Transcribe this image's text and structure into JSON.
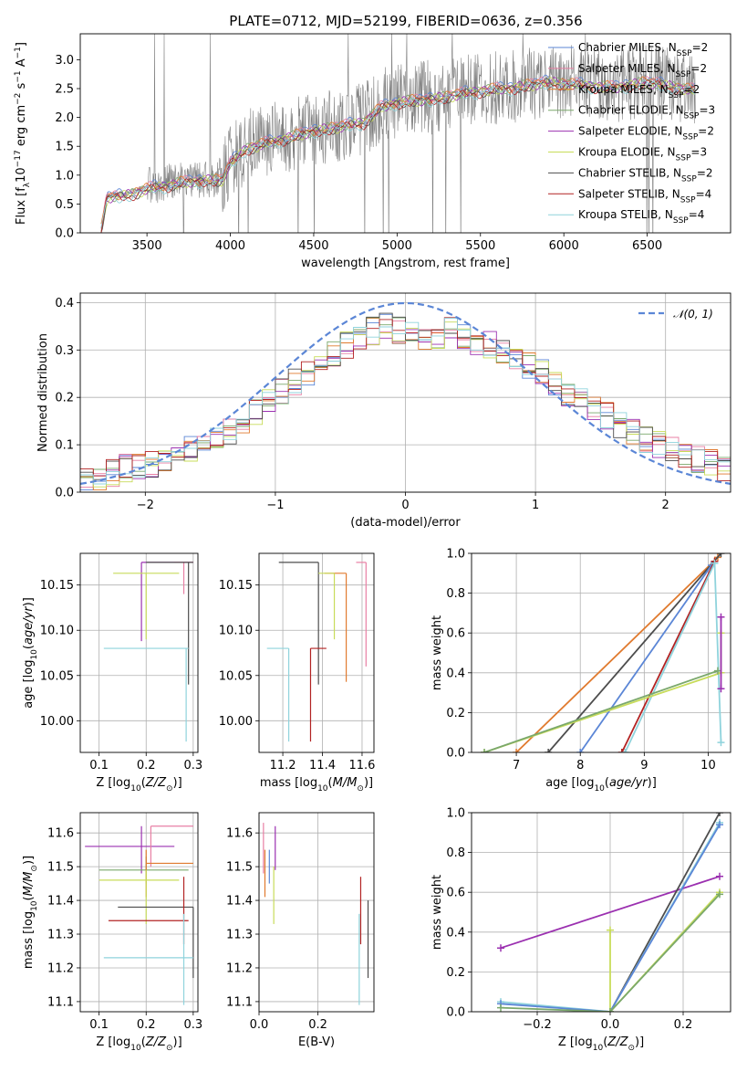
{
  "figure_title": "PLATE=0712, MJD=52199, FIBERID=0636, z=0.356",
  "colors": {
    "chabrier_miles": "#5b86d6",
    "salpeter_miles": "#e87fa4",
    "kroupa_miles": "#e07a2e",
    "chabrier_elodie": "#7aa86b",
    "salpeter_elodie": "#9b30b0",
    "kroupa_elodie": "#c8dc5a",
    "chabrier_stelib": "#4d4d4d",
    "salpeter_stelib": "#b22222",
    "kroupa_stelib": "#8fd3dc",
    "data": "#808080",
    "gaussian": "#5b86d6",
    "grid": "#b0b0b0"
  },
  "chart_data": [
    {
      "id": "spectrum",
      "type": "line",
      "title": "PLATE=0712, MJD=52199, FIBERID=0636, z=0.356",
      "xlabel": "wavelength [Angstrom, rest frame]",
      "ylabel": "Flux [f_λ 10^-17 erg cm^-2 s^-1 A^-1]",
      "xlim": [
        3100,
        7000
      ],
      "ylim": [
        0,
        3.45
      ],
      "xticks": [
        3500,
        4000,
        4500,
        5000,
        5500,
        6000,
        6500
      ],
      "yticks": [
        0.0,
        0.5,
        1.0,
        1.5,
        2.0,
        2.5,
        3.0
      ],
      "grid": false,
      "legend_position": "top-right",
      "series": [
        {
          "name": "Chabrier MILES, N_SSP=2",
          "color_key": "chabrier_miles"
        },
        {
          "name": "Salpeter MILES, N_SSP=2",
          "color_key": "salpeter_miles"
        },
        {
          "name": "Kroupa MILES, N_SSP=2",
          "color_key": "kroupa_miles"
        },
        {
          "name": "Chabrier ELODIE, N_SSP=3",
          "color_key": "chabrier_elodie"
        },
        {
          "name": "Salpeter ELODIE, N_SSP=2",
          "color_key": "salpeter_elodie"
        },
        {
          "name": "Kroupa ELODIE, N_SSP=3",
          "color_key": "kroupa_elodie"
        },
        {
          "name": "Chabrier STELIB, N_SSP=2",
          "color_key": "chabrier_stelib"
        },
        {
          "name": "Salpeter STELIB, N_SSP=4",
          "color_key": "salpeter_stelib"
        },
        {
          "name": "Kroupa STELIB, N_SSP=4",
          "color_key": "kroupa_stelib"
        }
      ],
      "legend_labels": [
        {
          "pre": "Chabrier MILES, N",
          "sub": "SSP",
          "post": "=2"
        },
        {
          "pre": "Salpeter MILES, N",
          "sub": "SSP",
          "post": "=2"
        },
        {
          "pre": "Kroupa MILES, N",
          "sub": "SSP",
          "post": "=2"
        },
        {
          "pre": "Chabrier ELODIE, N",
          "sub": "SSP",
          "post": "=3"
        },
        {
          "pre": "Salpeter ELODIE, N",
          "sub": "SSP",
          "post": "=2"
        },
        {
          "pre": "Kroupa ELODIE, N",
          "sub": "SSP",
          "post": "=3"
        },
        {
          "pre": "Chabrier STELIB, N",
          "sub": "SSP",
          "post": "=2"
        },
        {
          "pre": "Salpeter STELIB, N",
          "sub": "SSP",
          "post": "=4"
        },
        {
          "pre": "Kroupa STELIB, N",
          "sub": "SSP",
          "post": "=4"
        }
      ],
      "model_continuum": {
        "wavelength": [
          3220,
          3260,
          3400,
          3500,
          3700,
          3850,
          3950,
          4000,
          4100,
          4300,
          4500,
          4700,
          4800,
          4900,
          5000,
          5200,
          5400,
          5500,
          5700,
          5900,
          6100,
          6300,
          6500,
          6600,
          6790
        ],
        "flux": [
          0.0,
          0.65,
          0.7,
          0.8,
          0.9,
          0.95,
          0.95,
          1.25,
          1.5,
          1.65,
          1.8,
          1.9,
          1.95,
          2.2,
          2.3,
          2.35,
          2.45,
          2.5,
          2.55,
          2.65,
          2.6,
          2.55,
          2.65,
          2.6,
          2.5
        ]
      }
    },
    {
      "id": "residuals",
      "type": "step",
      "xlabel": "(data-model)/error",
      "ylabel": "Normed distribution",
      "xlim": [
        -2.5,
        2.5
      ],
      "ylim": [
        0,
        0.42
      ],
      "xticks": [
        -2,
        -1,
        0,
        1,
        2
      ],
      "yticks": [
        0.0,
        0.1,
        0.2,
        0.3,
        0.4
      ],
      "grid": true,
      "legend_position": "top-right",
      "legend_label": "𝒩(0, 1)",
      "gaussian": {
        "mean": 0,
        "sigma": 1,
        "style": "dashed"
      },
      "histogram_bins": {
        "start": -2.5,
        "width": 0.1
      },
      "histogram_shape": [
        0.03,
        0.03,
        0.04,
        0.05,
        0.055,
        0.06,
        0.07,
        0.08,
        0.09,
        0.1,
        0.12,
        0.13,
        0.15,
        0.17,
        0.19,
        0.21,
        0.23,
        0.25,
        0.27,
        0.29,
        0.31,
        0.33,
        0.34,
        0.35,
        0.34,
        0.33,
        0.32,
        0.33,
        0.34,
        0.33,
        0.32,
        0.31,
        0.3,
        0.28,
        0.27,
        0.25,
        0.23,
        0.21,
        0.2,
        0.18,
        0.16,
        0.14,
        0.13,
        0.11,
        0.1,
        0.09,
        0.08,
        0.07,
        0.06,
        0.05
      ]
    },
    {
      "id": "age_vs_Z",
      "type": "errorbar",
      "xlabel": "Z [log10(Z/Z⊙)]",
      "ylabel": "age [log10(age/yr)]",
      "xlim": [
        0.06,
        0.31
      ],
      "ylim": [
        9.965,
        10.185
      ],
      "xticks": [
        0.1,
        0.2,
        0.3
      ],
      "yticks": [
        10.0,
        10.05,
        10.1,
        10.15
      ],
      "grid": true,
      "points": [
        {
          "color_key": "salpeter_elodie",
          "x": 0.19,
          "y": 10.175,
          "xerr_lo": 0.19,
          "xerr_hi": 0.3,
          "yerr_lo": 10.088,
          "yerr_hi": 10.175
        },
        {
          "color_key": "salpeter_miles",
          "x": 0.28,
          "y": 10.175,
          "xerr_lo": 0.26,
          "xerr_hi": 0.3,
          "yerr_lo": 10.14,
          "yerr_hi": 10.175
        },
        {
          "color_key": "kroupa_elodie",
          "x": 0.2,
          "y": 10.163,
          "xerr_lo": 0.13,
          "xerr_hi": 0.27,
          "yerr_lo": 10.09,
          "yerr_hi": 10.163
        },
        {
          "color_key": "chabrier_stelib",
          "x": 0.29,
          "y": 10.175,
          "xerr_lo": 0.2,
          "xerr_hi": 0.3,
          "yerr_lo": 10.04,
          "yerr_hi": 10.175
        },
        {
          "color_key": "kroupa_stelib",
          "x": 0.285,
          "y": 10.08,
          "xerr_lo": 0.11,
          "xerr_hi": 0.29,
          "yerr_lo": 9.977,
          "yerr_hi": 10.08
        }
      ]
    },
    {
      "id": "age_vs_mass",
      "type": "errorbar",
      "xlabel": "mass [log10(M/M⊙)]",
      "ylabel": "",
      "xlim": [
        11.08,
        11.66
      ],
      "ylim": [
        9.965,
        10.185
      ],
      "xticks": [
        11.2,
        11.4,
        11.6
      ],
      "yticks": [
        10.0,
        10.05,
        10.1,
        10.15
      ],
      "grid": true,
      "points": [
        {
          "color_key": "chabrier_stelib",
          "x": 11.38,
          "y": 10.175,
          "xerr_lo": 11.18,
          "xerr_hi": 11.38,
          "yerr_lo": 10.04,
          "yerr_hi": 10.175
        },
        {
          "color_key": "salpeter_miles",
          "x": 11.62,
          "y": 10.175,
          "xerr_lo": 11.57,
          "xerr_hi": 11.62,
          "yerr_lo": 10.06,
          "yerr_hi": 10.175
        },
        {
          "color_key": "salpeter_stelib",
          "x": 11.34,
          "y": 10.08,
          "xerr_lo": 11.34,
          "xerr_hi": 11.42,
          "yerr_lo": 9.977,
          "yerr_hi": 10.08
        },
        {
          "color_key": "kroupa_miles",
          "x": 11.52,
          "y": 10.163,
          "xerr_lo": 11.41,
          "xerr_hi": 11.52,
          "yerr_lo": 10.043,
          "yerr_hi": 10.163
        },
        {
          "color_key": "kroupa_stelib",
          "x": 11.23,
          "y": 10.08,
          "xerr_lo": 11.12,
          "xerr_hi": 11.23,
          "yerr_lo": 9.977,
          "yerr_hi": 10.08
        },
        {
          "color_key": "kroupa_elodie",
          "x": 11.46,
          "y": 10.163,
          "xerr_lo": 11.38,
          "xerr_hi": 11.46,
          "yerr_lo": 10.09,
          "yerr_hi": 10.163
        }
      ]
    },
    {
      "id": "massweight_vs_age",
      "type": "line",
      "xlabel": "age [log10(age/yr)]",
      "ylabel": "mass weight",
      "xlim": [
        6.3,
        10.35
      ],
      "ylim": [
        0,
        1.0
      ],
      "xticks": [
        7,
        8,
        9,
        10
      ],
      "yticks": [
        0.0,
        0.2,
        0.4,
        0.6,
        0.8,
        1.0
      ],
      "grid": true,
      "series": [
        {
          "color_key": "kroupa_miles",
          "x": [
            7.0,
            10.15
          ],
          "y": [
            0.0,
            0.98
          ]
        },
        {
          "color_key": "chabrier_stelib",
          "x": [
            7.5,
            10.2
          ],
          "y": [
            0.0,
            1.0
          ]
        },
        {
          "color_key": "chabrier_miles",
          "x": [
            8.0,
            10.05
          ],
          "y": [
            0.0,
            0.94
          ]
        },
        {
          "color_key": "salpeter_stelib",
          "x": [
            8.65,
            10.1
          ],
          "y": [
            0.0,
            0.96
          ]
        },
        {
          "color_key": "kroupa_stelib",
          "x": [
            8.7,
            10.1,
            10.2
          ],
          "y": [
            0.0,
            0.95,
            0.05
          ]
        },
        {
          "color_key": "kroupa_elodie",
          "x": [
            6.5,
            10.2,
            10.2
          ],
          "y": [
            0.0,
            0.4,
            0.6
          ]
        },
        {
          "color_key": "chabrier_elodie",
          "x": [
            6.5,
            10.15
          ],
          "y": [
            0.0,
            0.41
          ]
        },
        {
          "color_key": "salpeter_elodie",
          "x": [
            10.2,
            10.2
          ],
          "y": [
            0.32,
            0.68
          ]
        }
      ]
    },
    {
      "id": "mass_vs_Z",
      "type": "errorbar",
      "xlabel": "Z [log10(Z/Z⊙)]",
      "ylabel": "mass [log10(M/M⊙)]",
      "xlim": [
        0.06,
        0.31
      ],
      "ylim": [
        11.07,
        11.66
      ],
      "xticks": [
        0.1,
        0.2,
        0.3
      ],
      "yticks": [
        11.1,
        11.2,
        11.3,
        11.4,
        11.5,
        11.6
      ],
      "grid": true,
      "points": [
        {
          "color_key": "salpeter_elodie",
          "x": 0.19,
          "y": 11.56,
          "xerr_lo": 0.07,
          "xerr_hi": 0.26,
          "yerr_lo": 11.48,
          "yerr_hi": 11.62
        },
        {
          "color_key": "salpeter_miles",
          "x": 0.21,
          "y": 11.62,
          "xerr_lo": 0.21,
          "xerr_hi": 0.3,
          "yerr_lo": 11.5,
          "yerr_hi": 11.62
        },
        {
          "color_key": "chabrier_elodie",
          "x": 0.2,
          "y": 11.49,
          "xerr_lo": 0.1,
          "xerr_hi": 0.29,
          "yerr_lo": 11.45,
          "yerr_hi": 11.53
        },
        {
          "color_key": "kroupa_miles",
          "x": 0.2,
          "y": 11.51,
          "xerr_lo": 0.2,
          "xerr_hi": 0.3,
          "yerr_lo": 11.41,
          "yerr_hi": 11.55
        },
        {
          "color_key": "kroupa_elodie",
          "x": 0.2,
          "y": 11.46,
          "xerr_lo": 0.1,
          "xerr_hi": 0.27,
          "yerr_lo": 11.33,
          "yerr_hi": 11.49
        },
        {
          "color_key": "chabrier_stelib",
          "x": 0.3,
          "y": 11.38,
          "xerr_lo": 0.14,
          "xerr_hi": 0.3,
          "yerr_lo": 11.17,
          "yerr_hi": 11.38
        },
        {
          "color_key": "salpeter_stelib",
          "x": 0.28,
          "y": 11.34,
          "xerr_lo": 0.12,
          "xerr_hi": 0.29,
          "yerr_lo": 11.27,
          "yerr_hi": 11.47
        },
        {
          "color_key": "kroupa_stelib",
          "x": 0.28,
          "y": 11.23,
          "xerr_lo": 0.11,
          "xerr_hi": 0.3,
          "yerr_lo": 11.09,
          "yerr_hi": 11.36
        }
      ]
    },
    {
      "id": "mass_vs_ebv",
      "type": "errorbar",
      "xlabel": "E(B-V)",
      "ylabel": "",
      "xlim": [
        0.0,
        0.39
      ],
      "ylim": [
        11.07,
        11.66
      ],
      "xticks": [
        0.0,
        0.2
      ],
      "yticks": [
        11.1,
        11.2,
        11.3,
        11.4,
        11.5,
        11.6
      ],
      "grid": true,
      "points": [
        {
          "color_key": "salpeter_miles",
          "x": 0.015,
          "y": 11.55,
          "yerr_lo": 11.48,
          "yerr_hi": 11.63
        },
        {
          "color_key": "kroupa_miles",
          "x": 0.02,
          "y": 11.5,
          "yerr_lo": 11.41,
          "yerr_hi": 11.55
        },
        {
          "color_key": "chabrier_miles",
          "x": 0.035,
          "y": 11.5,
          "yerr_lo": 11.45,
          "yerr_hi": 11.55
        },
        {
          "color_key": "salpeter_elodie",
          "x": 0.055,
          "y": 11.55,
          "yerr_lo": 11.49,
          "yerr_hi": 11.62
        },
        {
          "color_key": "kroupa_elodie",
          "x": 0.05,
          "y": 11.45,
          "yerr_lo": 11.33,
          "yerr_hi": 11.5
        },
        {
          "color_key": "salpeter_stelib",
          "x": 0.345,
          "y": 11.34,
          "yerr_lo": 11.27,
          "yerr_hi": 11.47
        },
        {
          "color_key": "kroupa_stelib",
          "x": 0.34,
          "y": 11.23,
          "yerr_lo": 11.09,
          "yerr_hi": 11.36
        },
        {
          "color_key": "chabrier_stelib",
          "x": 0.37,
          "y": 11.3,
          "yerr_lo": 11.17,
          "yerr_hi": 11.4
        }
      ]
    },
    {
      "id": "massweight_vs_Z",
      "type": "line",
      "xlabel": "Z [log10(Z/Z⊙)]",
      "ylabel": "mass weight",
      "xlim": [
        -0.38,
        0.33
      ],
      "ylim": [
        0,
        1.0
      ],
      "xticks": [
        -0.2,
        0.0,
        0.2
      ],
      "yticks": [
        0.0,
        0.2,
        0.4,
        0.6,
        0.8,
        1.0
      ],
      "grid": true,
      "series": [
        {
          "color_key": "salpeter_elodie",
          "x": [
            -0.3,
            0.3
          ],
          "y": [
            0.32,
            0.68
          ]
        },
        {
          "color_key": "chabrier_stelib",
          "x": [
            0.0,
            0.3
          ],
          "y": [
            0.0,
            1.0
          ]
        },
        {
          "color_key": "kroupa_stelib",
          "x": [
            -0.3,
            0.0,
            0.3
          ],
          "y": [
            0.05,
            0.0,
            0.95
          ]
        },
        {
          "color_key": "chabrier_miles",
          "x": [
            -0.3,
            0.0,
            0.3
          ],
          "y": [
            0.04,
            0.0,
            0.94
          ]
        },
        {
          "color_key": "kroupa_elodie",
          "x": [
            0.0,
            0.0,
            0.3
          ],
          "y": [
            0.41,
            0.0,
            0.6
          ]
        },
        {
          "color_key": "chabrier_elodie",
          "x": [
            -0.3,
            0.0,
            0.3
          ],
          "y": [
            0.02,
            0.0,
            0.59
          ]
        }
      ]
    }
  ]
}
